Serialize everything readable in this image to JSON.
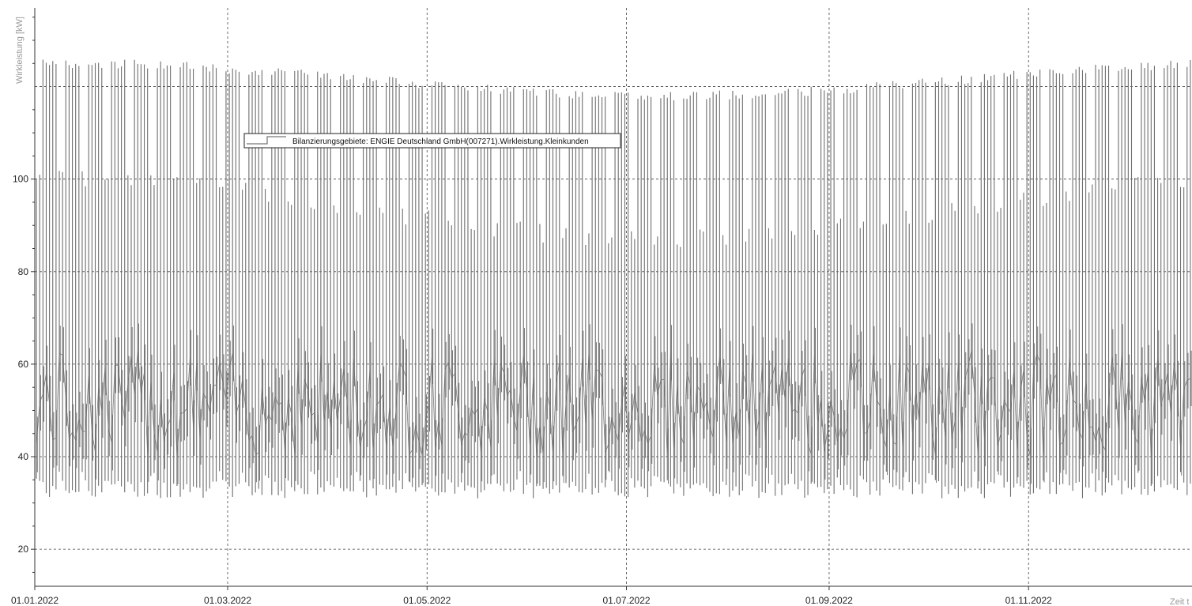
{
  "chart_data": {
    "type": "line",
    "ylabel": "Wirkleistung [kW]",
    "xlabel": "Zeit t",
    "yticks": [
      20,
      40,
      60,
      80,
      100
    ],
    "ylim": [
      12,
      137
    ],
    "xlim": [
      "2022-01-01",
      "2022-12-31"
    ],
    "xticks": [
      "2022-01-01",
      "2022-03-01",
      "2022-05-01",
      "2022-07-01",
      "2022-09-01",
      "2022-11-01"
    ],
    "xtick_labels": [
      "01.01.2022",
      "01.03.2022",
      "01.05.2022",
      "01.07.2022",
      "01.09.2022",
      "01.11.2022"
    ],
    "grid": true,
    "legend_position": "top-left",
    "series": [
      {
        "name": "Bilanzierungsgebiete: ENGIE Deutschland GmbH(007271).Wirkleistung.Kleinkunden",
        "color": "#6e6e6e",
        "resolution": "daily min/max envelope",
        "daily_max_range": [
          119,
          126
        ],
        "weekday_band_max_range": [
          89,
          102
        ],
        "daily_min_range": [
          27,
          35
        ],
        "baseline_range": [
          40,
          63
        ]
      }
    ]
  }
}
